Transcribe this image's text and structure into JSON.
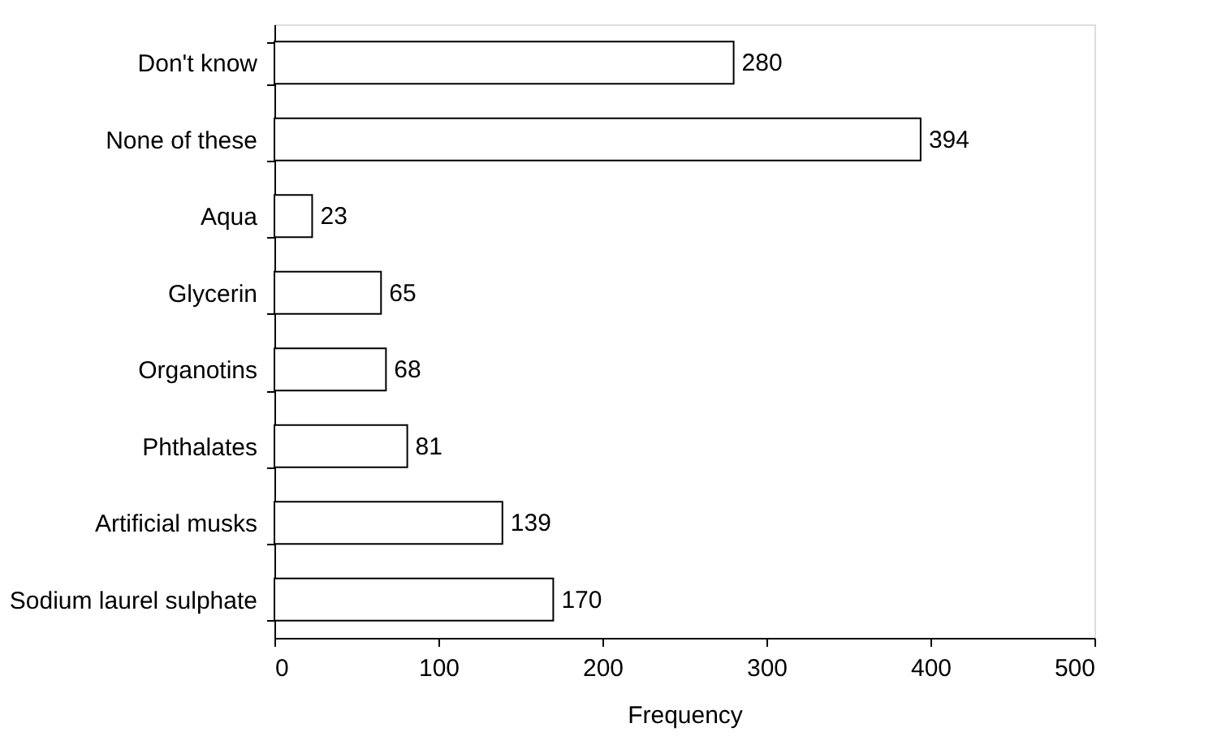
{
  "chart_data": {
    "type": "bar",
    "orientation": "horizontal",
    "xlabel": "Frequency",
    "categories": [
      "Don't know",
      "None of these",
      "Aqua",
      "Glycerin",
      "Organotins",
      "Phthalates",
      "Artificial musks",
      "Sodium laurel sulphate"
    ],
    "values": [
      280,
      394,
      23,
      65,
      68,
      81,
      139,
      170
    ],
    "color": "#ffffff",
    "xlim": [
      0,
      500
    ],
    "xticks": [
      0,
      100,
      200,
      300,
      400,
      500
    ],
    "grid": false,
    "data_labels": true
  }
}
